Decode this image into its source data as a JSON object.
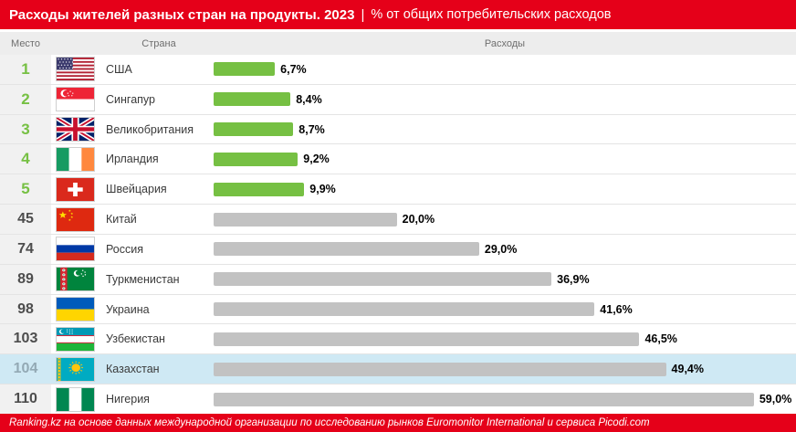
{
  "header": {
    "title_main": "Расходы жителей разных стран на продукты. 2023",
    "title_sep": "|",
    "title_sub": "% от общих потребительских расходов"
  },
  "columns": {
    "rank": "Место",
    "country": "Страна",
    "expenses": "Расходы"
  },
  "footer": {
    "text": "Ranking.kz на основе данных международной организации по исследованию рынков Euromonitor International и сервиса Picodi.com"
  },
  "colors": {
    "header_bg": "#e50019",
    "footer_bg": "#e50019",
    "bar_green": "#76c043",
    "bar_gray": "#c2c2c2",
    "highlight_row": "#cfe9f4",
    "rank_green": "#76c043"
  },
  "chart_data": {
    "type": "bar",
    "title": "Расходы жителей разных стран на продукты. 2023",
    "subtitle": "% от общих потребительских расходов",
    "xlabel": "Расходы",
    "value_suffix": "%",
    "max_scale": 63,
    "source": "Ranking.kz на основе данных международной организации по исследованию рынков Euromonitor International и сервиса Picodi.com",
    "rows": [
      {
        "rank": "1",
        "country": "США",
        "flag": "us",
        "value": 6.7,
        "label": "6,7%",
        "top": true,
        "highlight": false
      },
      {
        "rank": "2",
        "country": "Сингапур",
        "flag": "sg",
        "value": 8.4,
        "label": "8,4%",
        "top": true,
        "highlight": false
      },
      {
        "rank": "3",
        "country": "Великобритания",
        "flag": "gb",
        "value": 8.7,
        "label": "8,7%",
        "top": true,
        "highlight": false
      },
      {
        "rank": "4",
        "country": "Ирландия",
        "flag": "ie",
        "value": 9.2,
        "label": "9,2%",
        "top": true,
        "highlight": false
      },
      {
        "rank": "5",
        "country": "Швейцария",
        "flag": "ch",
        "value": 9.9,
        "label": "9,9%",
        "top": true,
        "highlight": false
      },
      {
        "rank": "45",
        "country": "Китай",
        "flag": "cn",
        "value": 20.0,
        "label": "20,0%",
        "top": false,
        "highlight": false
      },
      {
        "rank": "74",
        "country": "Россия",
        "flag": "ru",
        "value": 29.0,
        "label": "29,0%",
        "top": false,
        "highlight": false
      },
      {
        "rank": "89",
        "country": "Туркменистан",
        "flag": "tm",
        "value": 36.9,
        "label": "36,9%",
        "top": false,
        "highlight": false
      },
      {
        "rank": "98",
        "country": "Украина",
        "flag": "ua",
        "value": 41.6,
        "label": "41,6%",
        "top": false,
        "highlight": false
      },
      {
        "rank": "103",
        "country": "Узбекистан",
        "flag": "uz",
        "value": 46.5,
        "label": "46,5%",
        "top": false,
        "highlight": false
      },
      {
        "rank": "104",
        "country": "Казахстан",
        "flag": "kz",
        "value": 49.4,
        "label": "49,4%",
        "top": false,
        "highlight": true
      },
      {
        "rank": "110",
        "country": "Нигерия",
        "flag": "ng",
        "value": 59.0,
        "label": "59,0%",
        "top": false,
        "highlight": false
      }
    ]
  }
}
